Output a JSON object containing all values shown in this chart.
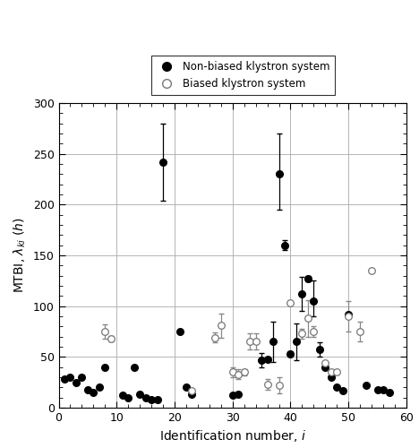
{
  "title": "",
  "xlabel": "Identification number, $i$",
  "ylabel": "MTBI, $\\lambda_{ki}$ ($h$)",
  "xlim": [
    0,
    60
  ],
  "ylim": [
    0,
    300
  ],
  "xticks": [
    0,
    10,
    20,
    30,
    40,
    50,
    60
  ],
  "yticks": [
    0,
    50,
    100,
    150,
    200,
    250,
    300
  ],
  "grid_color": "#aaaaaa",
  "background_color": "#ffffff",
  "nonbiased": {
    "x": [
      1,
      2,
      3,
      4,
      5,
      6,
      7,
      8,
      11,
      12,
      13,
      14,
      15,
      16,
      17,
      18,
      21,
      22,
      23,
      30,
      31,
      35,
      36,
      37,
      38,
      39,
      40,
      41,
      42,
      43,
      44,
      45,
      46,
      47,
      48,
      49,
      50,
      53,
      55,
      56,
      57
    ],
    "y": [
      28,
      30,
      25,
      30,
      18,
      15,
      20,
      40,
      12,
      10,
      40,
      13,
      10,
      8,
      8,
      242,
      75,
      20,
      13,
      12,
      13,
      47,
      48,
      65,
      230,
      160,
      53,
      65,
      112,
      127,
      105,
      57,
      40,
      30,
      20,
      17,
      92,
      22,
      18,
      18,
      15
    ],
    "yerr_lo": [
      0,
      0,
      0,
      0,
      0,
      0,
      0,
      0,
      0,
      0,
      0,
      0,
      0,
      0,
      0,
      38,
      0,
      0,
      0,
      0,
      0,
      7,
      0,
      20,
      35,
      5,
      3,
      18,
      17,
      3,
      15,
      7,
      0,
      0,
      0,
      0,
      0,
      0,
      0,
      0,
      0
    ],
    "yerr_hi": [
      0,
      0,
      0,
      0,
      0,
      0,
      0,
      0,
      0,
      0,
      0,
      0,
      0,
      0,
      0,
      38,
      0,
      0,
      0,
      0,
      0,
      7,
      0,
      20,
      40,
      5,
      3,
      18,
      17,
      3,
      20,
      7,
      0,
      0,
      0,
      0,
      0,
      0,
      0,
      0,
      0
    ],
    "color": "#000000",
    "markersize": 5.5
  },
  "biased": {
    "x": [
      8,
      9,
      23,
      27,
      28,
      30,
      31,
      32,
      33,
      34,
      36,
      38,
      40,
      42,
      43,
      44,
      46,
      47,
      48,
      50,
      52,
      54
    ],
    "y": [
      75,
      68,
      17,
      69,
      81,
      35,
      33,
      35,
      65,
      65,
      23,
      22,
      103,
      73,
      88,
      75,
      44,
      35,
      35,
      90,
      75,
      135
    ],
    "yerr_lo": [
      7,
      3,
      0,
      5,
      12,
      5,
      5,
      3,
      8,
      8,
      5,
      8,
      0,
      5,
      18,
      5,
      0,
      0,
      0,
      15,
      10,
      0
    ],
    "yerr_hi": [
      7,
      3,
      0,
      5,
      12,
      5,
      5,
      3,
      8,
      8,
      5,
      8,
      0,
      5,
      18,
      5,
      0,
      0,
      0,
      15,
      10,
      0
    ],
    "color": "#777777",
    "markersize": 5.5
  },
  "legend_nonbiased": "Non-biased klystron system",
  "legend_biased": "Biased klystron system",
  "figsize": [
    4.68,
    5.0
  ],
  "dpi": 100
}
